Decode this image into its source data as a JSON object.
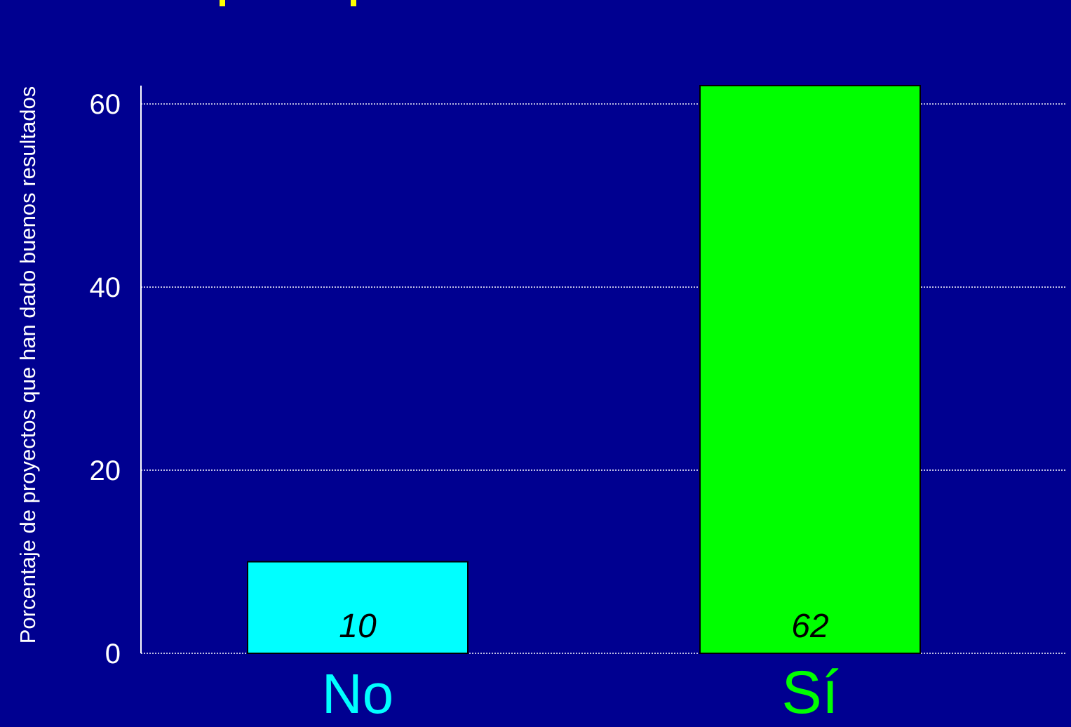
{
  "colors": {
    "background": "#000090",
    "axis": "#ffffff",
    "grid": "#ffffff",
    "title_fragment": "#ffff00",
    "bar_no": "#00ffff",
    "bar_si": "#00ff00"
  },
  "chart_data": {
    "type": "bar",
    "title": "",
    "xlabel": "",
    "ylabel": "Porcentaje de proyectos que han dado buenos resultados",
    "ylim": [
      0,
      62
    ],
    "yticks": [
      0,
      20,
      40,
      60
    ],
    "grid": true,
    "legend": "none",
    "categories": [
      "No",
      "Sí"
    ],
    "values": [
      10,
      62
    ],
    "value_labels": [
      "10",
      "62"
    ],
    "bar_colors": [
      "#00ffff",
      "#00ff00"
    ],
    "category_label_colors": [
      "#00ffff",
      "#00ff00"
    ]
  }
}
